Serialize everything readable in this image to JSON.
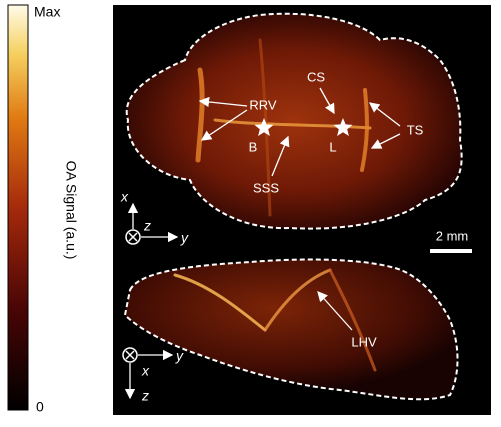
{
  "colorbar": {
    "max_label": "Max",
    "min_label": "0",
    "title": "OA Signal (a.u.)"
  },
  "top_panel": {
    "labels": {
      "rrv": "RRV",
      "cs": "CS",
      "ts": "TS",
      "b": "B",
      "l": "L",
      "sss": "SSS"
    },
    "axes": {
      "x": "x",
      "z": "z",
      "y": "y"
    }
  },
  "scale_bar": "2 mm",
  "bottom_panel": {
    "labels": {
      "lhv": "LHV"
    },
    "axes": {
      "y": "y",
      "x": "x",
      "z": "z"
    }
  }
}
